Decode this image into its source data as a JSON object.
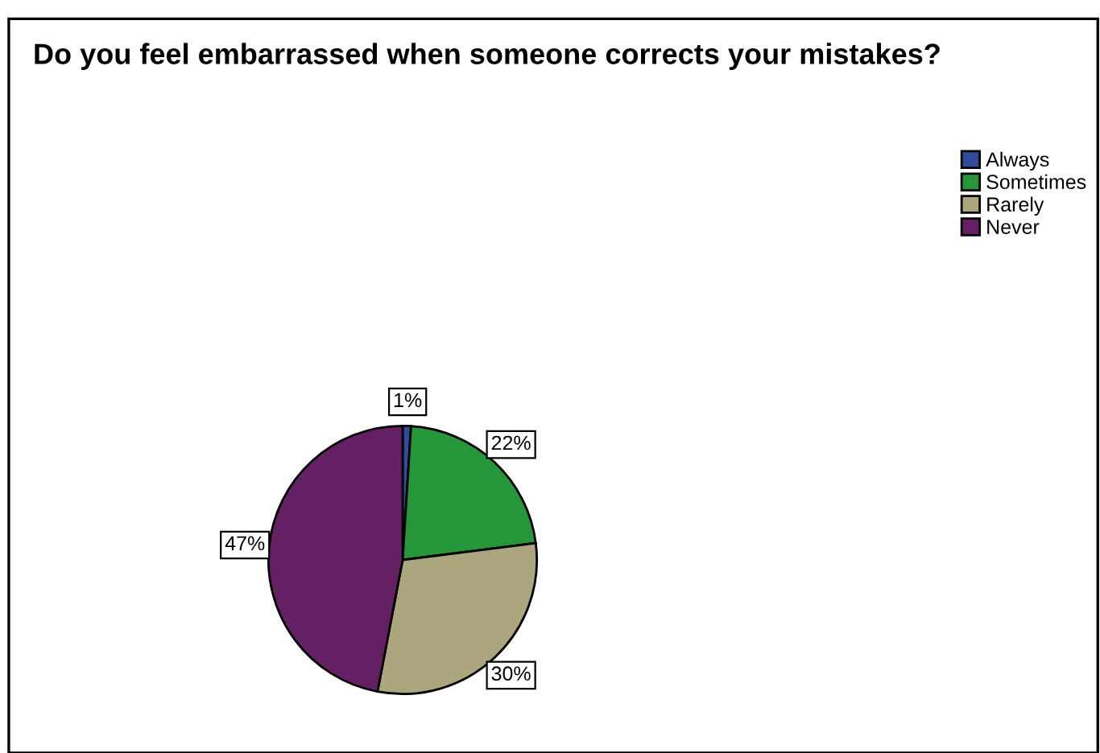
{
  "chart_data": {
    "type": "pie",
    "title": "Do you feel embarrassed when someone corrects your mistakes?",
    "categories": [
      "Always",
      "Sometimes",
      "Rarely",
      "Never"
    ],
    "values": [
      1,
      22,
      30,
      47
    ],
    "colors": [
      "#2f4d9c",
      "#25963a",
      "#aca67e",
      "#642062"
    ],
    "value_labels": [
      "1%",
      "22%",
      "30%",
      "47%"
    ],
    "legend": "top right"
  }
}
